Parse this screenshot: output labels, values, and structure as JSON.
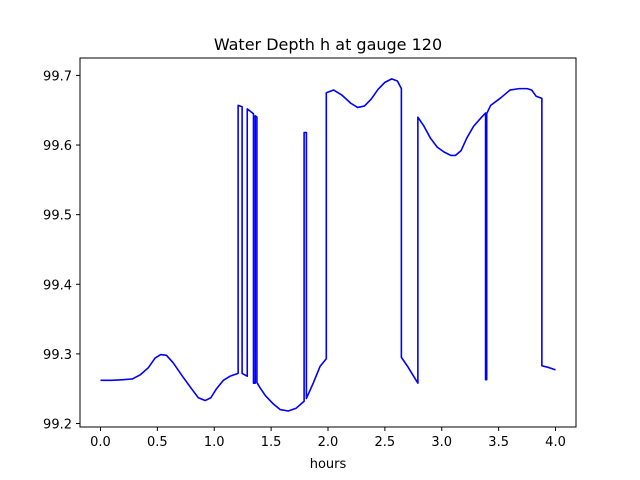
{
  "chart_data": {
    "type": "line",
    "title": "Water Depth h at gauge 120",
    "xlabel": "hours",
    "ylabel": "",
    "xlim": [
      -0.18,
      4.18
    ],
    "ylim": [
      99.195,
      99.725
    ],
    "x_ticks": [
      0.0,
      0.5,
      1.0,
      1.5,
      2.0,
      2.5,
      3.0,
      3.5,
      4.0
    ],
    "x_tick_labels": [
      "0.0",
      "0.5",
      "1.0",
      "1.5",
      "2.0",
      "2.5",
      "3.0",
      "3.5",
      "4.0"
    ],
    "y_ticks": [
      99.2,
      99.3,
      99.4,
      99.5,
      99.6,
      99.7
    ],
    "y_tick_labels": [
      "99.2",
      "99.3",
      "99.4",
      "99.5",
      "99.6",
      "99.7"
    ],
    "grid": false,
    "series": [
      {
        "color": "#0000ff",
        "points": [
          [
            0.0,
            99.262
          ],
          [
            0.1,
            99.262
          ],
          [
            0.2,
            99.263
          ],
          [
            0.28,
            99.264
          ],
          [
            0.35,
            99.27
          ],
          [
            0.42,
            99.28
          ],
          [
            0.48,
            99.294
          ],
          [
            0.53,
            99.299
          ],
          [
            0.58,
            99.298
          ],
          [
            0.64,
            99.287
          ],
          [
            0.72,
            99.268
          ],
          [
            0.8,
            99.25
          ],
          [
            0.86,
            99.237
          ],
          [
            0.92,
            99.233
          ],
          [
            0.97,
            99.237
          ],
          [
            1.02,
            99.25
          ],
          [
            1.08,
            99.262
          ],
          [
            1.14,
            99.268
          ],
          [
            1.21,
            99.272
          ],
          [
            1.21,
            99.657
          ],
          [
            1.245,
            99.655
          ],
          [
            1.245,
            99.272
          ],
          [
            1.29,
            99.268
          ],
          [
            1.29,
            99.652
          ],
          [
            1.345,
            99.645
          ],
          [
            1.345,
            99.258
          ],
          [
            1.36,
            99.258
          ],
          [
            1.36,
            99.642
          ],
          [
            1.375,
            99.64
          ],
          [
            1.375,
            99.259
          ],
          [
            1.4,
            99.252
          ],
          [
            1.45,
            99.24
          ],
          [
            1.52,
            99.228
          ],
          [
            1.58,
            99.22
          ],
          [
            1.65,
            99.218
          ],
          [
            1.72,
            99.222
          ],
          [
            1.79,
            99.232
          ],
          [
            1.79,
            99.618
          ],
          [
            1.81,
            99.618
          ],
          [
            1.81,
            99.236
          ],
          [
            1.87,
            99.258
          ],
          [
            1.93,
            99.282
          ],
          [
            1.985,
            99.293
          ],
          [
            1.985,
            99.675
          ],
          [
            2.05,
            99.679
          ],
          [
            2.12,
            99.672
          ],
          [
            2.2,
            99.66
          ],
          [
            2.26,
            99.654
          ],
          [
            2.32,
            99.656
          ],
          [
            2.38,
            99.666
          ],
          [
            2.44,
            99.68
          ],
          [
            2.5,
            99.69
          ],
          [
            2.56,
            99.695
          ],
          [
            2.61,
            99.692
          ],
          [
            2.645,
            99.681
          ],
          [
            2.645,
            99.295
          ],
          [
            2.7,
            99.282
          ],
          [
            2.745,
            99.27
          ],
          [
            2.79,
            99.258
          ],
          [
            2.79,
            99.64
          ],
          [
            2.84,
            99.628
          ],
          [
            2.9,
            99.61
          ],
          [
            2.96,
            99.597
          ],
          [
            3.02,
            99.59
          ],
          [
            3.08,
            99.585
          ],
          [
            3.12,
            99.585
          ],
          [
            3.17,
            99.592
          ],
          [
            3.22,
            99.61
          ],
          [
            3.28,
            99.627
          ],
          [
            3.35,
            99.64
          ],
          [
            3.385,
            99.646
          ],
          [
            3.385,
            99.263
          ],
          [
            3.395,
            99.263
          ],
          [
            3.395,
            99.645
          ],
          [
            3.43,
            99.657
          ],
          [
            3.52,
            99.668
          ],
          [
            3.6,
            99.679
          ],
          [
            3.68,
            99.681
          ],
          [
            3.75,
            99.681
          ],
          [
            3.79,
            99.679
          ],
          [
            3.83,
            99.67
          ],
          [
            3.88,
            99.667
          ],
          [
            3.88,
            99.283
          ],
          [
            3.95,
            99.28
          ],
          [
            4.0,
            99.277
          ]
        ]
      }
    ]
  }
}
